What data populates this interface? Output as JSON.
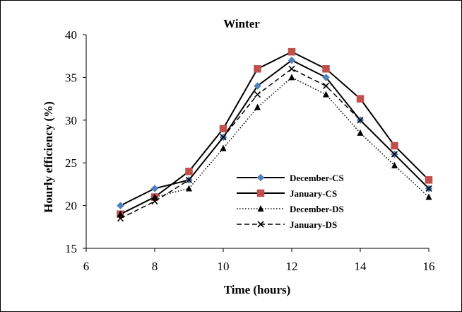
{
  "chart_data": {
    "type": "line",
    "title": "Winter",
    "xlabel": "Time (hours)",
    "ylabel": "Hourly efficiency (%)",
    "xlim": [
      6,
      16
    ],
    "ylim": [
      15,
      40
    ],
    "xticks": [
      6,
      8,
      10,
      12,
      14,
      16
    ],
    "yticks": [
      15,
      20,
      25,
      30,
      35,
      40
    ],
    "grid": false,
    "legend_position": "center-right",
    "x": [
      7,
      8,
      9,
      10,
      11,
      12,
      13,
      14,
      15,
      16
    ],
    "series": [
      {
        "name": "December-CS",
        "values": [
          20,
          22,
          23,
          28,
          34,
          37,
          35,
          30,
          26,
          22
        ],
        "line_color": "#000000",
        "line_style": "solid",
        "marker": "diamond",
        "marker_color": "#4f81bd"
      },
      {
        "name": "January-CS",
        "values": [
          19,
          21,
          24,
          29,
          36,
          38,
          36,
          32.5,
          27,
          23
        ],
        "line_color": "#000000",
        "line_style": "solid",
        "marker": "square",
        "marker_color": "#c0504d"
      },
      {
        "name": "December-DS",
        "values": [
          19,
          21,
          22,
          26.7,
          31.5,
          35,
          33,
          28.5,
          24.7,
          21
        ],
        "line_color": "#000000",
        "line_style": "dotted",
        "marker": "triangle",
        "marker_color": "#000000"
      },
      {
        "name": "January-DS",
        "values": [
          18.5,
          20.5,
          23,
          28,
          33,
          36,
          34,
          30,
          26,
          22
        ],
        "line_color": "#000000",
        "line_style": "dashed",
        "marker": "x",
        "marker_color": "#000000"
      }
    ]
  }
}
